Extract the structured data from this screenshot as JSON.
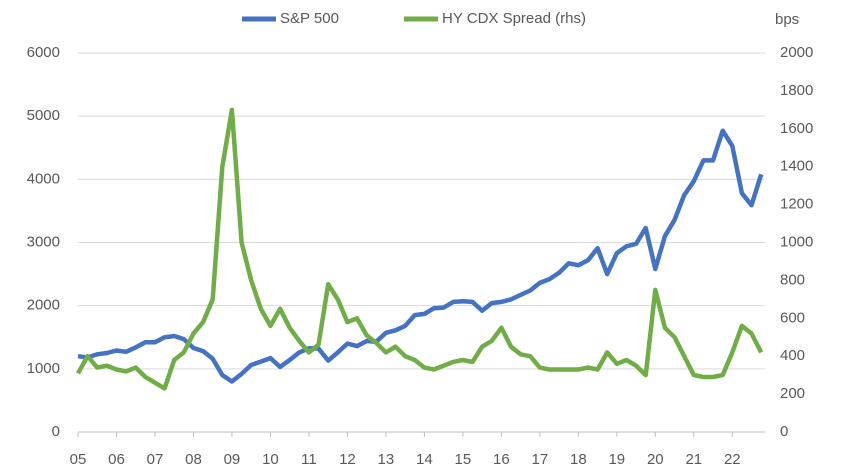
{
  "chart_data": {
    "type": "line",
    "x": [
      5,
      5.25,
      5.5,
      5.75,
      6,
      6.25,
      6.5,
      6.75,
      7,
      7.25,
      7.5,
      7.75,
      8,
      8.25,
      8.5,
      8.75,
      9,
      9.25,
      9.5,
      9.75,
      10,
      10.25,
      10.5,
      10.75,
      11,
      11.25,
      11.5,
      11.75,
      12,
      12.25,
      12.5,
      12.75,
      13,
      13.25,
      13.5,
      13.75,
      14,
      14.25,
      14.5,
      14.75,
      15,
      15.25,
      15.5,
      15.75,
      16,
      16.25,
      16.5,
      16.75,
      17,
      17.25,
      17.5,
      17.75,
      18,
      18.25,
      18.5,
      18.75,
      19,
      19.25,
      19.5,
      19.75,
      20,
      20.25,
      20.5,
      20.75,
      21,
      21.25,
      21.5,
      21.75,
      22,
      22.25,
      22.5,
      22.75
    ],
    "series": [
      {
        "name": "S&P 500",
        "color": "#4472c4",
        "values": [
          1200,
          1180,
          1230,
          1250,
          1290,
          1270,
          1340,
          1420,
          1420,
          1500,
          1520,
          1470,
          1330,
          1280,
          1160,
          900,
          800,
          920,
          1060,
          1115,
          1170,
          1030,
          1140,
          1260,
          1325,
          1320,
          1130,
          1260,
          1400,
          1360,
          1440,
          1430,
          1570,
          1610,
          1680,
          1850,
          1870,
          1960,
          1970,
          2060,
          2070,
          2060,
          1920,
          2040,
          2060,
          2100,
          2170,
          2240,
          2360,
          2420,
          2520,
          2670,
          2640,
          2720,
          2910,
          2500,
          2830,
          2940,
          2980,
          3230,
          2580,
          3100,
          3360,
          3750,
          3970,
          4300,
          4300,
          4770,
          4530,
          3780,
          3590,
          4080
        ]
      },
      {
        "name": "HY CDX Spread (rhs)",
        "color": "#70ad47",
        "axis": "y2",
        "values": [
          310,
          400,
          340,
          350,
          330,
          320,
          340,
          290,
          260,
          230,
          380,
          420,
          520,
          580,
          700,
          1400,
          1700,
          1000,
          800,
          650,
          560,
          650,
          550,
          480,
          420,
          460,
          780,
          700,
          580,
          600,
          510,
          470,
          420,
          450,
          400,
          380,
          340,
          330,
          350,
          370,
          380,
          370,
          450,
          480,
          550,
          450,
          410,
          400,
          340,
          330,
          330,
          330,
          330,
          340,
          330,
          420,
          360,
          380,
          350,
          300,
          750,
          550,
          500,
          400,
          300,
          290,
          290,
          300,
          420,
          560,
          520,
          420
        ]
      }
    ],
    "xlim": [
      5,
      22.85
    ],
    "xticks": [
      {
        "value": 5,
        "label": "05"
      },
      {
        "value": 6,
        "label": "06"
      },
      {
        "value": 7,
        "label": "07"
      },
      {
        "value": 8,
        "label": "08"
      },
      {
        "value": 9,
        "label": "09"
      },
      10,
      11,
      12,
      13,
      14,
      15,
      16,
      17,
      18,
      19,
      20,
      21,
      22
    ],
    "ylim": [
      0,
      6000
    ],
    "yticks": [
      0,
      1000,
      2000,
      3000,
      4000,
      5000,
      6000
    ],
    "y2lim": [
      0,
      2000
    ],
    "y2ticks": [
      0,
      200,
      400,
      600,
      800,
      1000,
      1200,
      1400,
      1600,
      1800,
      2000
    ],
    "y2label": "bps",
    "grid": true,
    "legend": "top"
  }
}
